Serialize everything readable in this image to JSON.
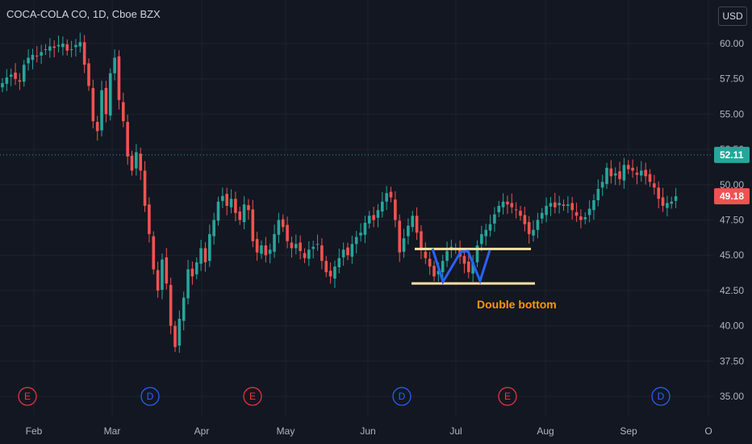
{
  "symbol_title": "COCA-COLA CO, 1D, Cboe BZX",
  "currency": "USD",
  "colors": {
    "background": "#131722",
    "up": "#26a69a",
    "down": "#ef5350",
    "grid": "#1e222d",
    "price_line": "#26a69a",
    "pattern_line": "#ffe0a0",
    "pattern_path": "#2962ff",
    "annotation": "#ff9800"
  },
  "chart_data": {
    "type": "candlestick",
    "title": "COCA-COLA CO, 1D, Cboe BZX",
    "y_axis_ticks": [
      "60.00",
      "57.50",
      "55.00",
      "52.50",
      "50.00",
      "47.50",
      "45.00",
      "42.50",
      "40.00",
      "37.50",
      "35.00"
    ],
    "x_axis_ticks": [
      "Feb",
      "Mar",
      "Apr",
      "May",
      "Jun",
      "Jul",
      "Aug",
      "Sep",
      "O"
    ],
    "ylim": [
      34,
      62.5
    ],
    "grid": true,
    "last_price": "49.18",
    "reference_price": "52.11",
    "closes": [
      57.2,
      57.6,
      57.8,
      57.5,
      57.3,
      58.5,
      59.0,
      59.2,
      59.1,
      59.4,
      59.6,
      59.8,
      59.7,
      59.9,
      60.0,
      59.5,
      59.6,
      59.9,
      60.1,
      58.5,
      57.0,
      54.5,
      53.8,
      56.7,
      55.0,
      57.9,
      59.0,
      56.0,
      54.5,
      52.0,
      51.0,
      52.3,
      51.0,
      48.5,
      46.5,
      44.0,
      42.5,
      44.7,
      43.0,
      40.0,
      38.5,
      40.5,
      42.0,
      44.0,
      43.5,
      44.5,
      45.5,
      44.5,
      46.5,
      47.5,
      48.8,
      49.2,
      48.5,
      49.0,
      48.0,
      47.5,
      48.6,
      48.2,
      46.0,
      45.2,
      45.7,
      45.0,
      45.4,
      46.5,
      47.5,
      47.0,
      46.0,
      45.5,
      45.8,
      45.3,
      44.8,
      45.4,
      45.6,
      45.8,
      44.6,
      43.8,
      43.5,
      44.2,
      44.8,
      45.4,
      45.0,
      45.8,
      46.3,
      46.6,
      47.3,
      47.8,
      47.5,
      48.2,
      48.8,
      49.4,
      49.1,
      47.5,
      45.2,
      46.2,
      47.1,
      47.8,
      46.6,
      45.4,
      44.8,
      44.2,
      43.5,
      43.9,
      44.6,
      45.3,
      45.6,
      45.5,
      44.9,
      44.4,
      43.8,
      44.5,
      45.7,
      46.5,
      46.8,
      47.2,
      47.9,
      48.5,
      48.8,
      48.6,
      48.4,
      48.2,
      47.8,
      47.2,
      46.5,
      46.8,
      47.5,
      48.0,
      48.5,
      48.7,
      48.4,
      48.7,
      48.5,
      48.6,
      48.2,
      47.8,
      47.5,
      47.7,
      48.3,
      48.9,
      49.7,
      50.2,
      51.2,
      50.6,
      50.8,
      50.4,
      51.4,
      51.1,
      51.0,
      50.7,
      51.0,
      50.6,
      50.2,
      49.8,
      49.0,
      48.5,
      48.7,
      48.8,
      49.18
    ],
    "annotations": [
      {
        "label": "Double bottom"
      }
    ],
    "resistance_level": 45.45,
    "support_level": 43.0,
    "pattern_points": [
      [
        125,
        45.4
      ],
      [
        129,
        43.1
      ],
      [
        133,
        45.4
      ],
      [
        136,
        45.5
      ],
      [
        139,
        43.1
      ],
      [
        142,
        45.2
      ]
    ]
  },
  "events": [
    {
      "letter": "E",
      "color": "#f23645"
    },
    {
      "letter": "D",
      "color": "#2962ff"
    },
    {
      "letter": "E",
      "color": "#f23645"
    },
    {
      "letter": "D",
      "color": "#2962ff"
    },
    {
      "letter": "E",
      "color": "#f23645"
    },
    {
      "letter": "D",
      "color": "#2962ff"
    }
  ],
  "icons": [
    "circle-event-icon"
  ]
}
